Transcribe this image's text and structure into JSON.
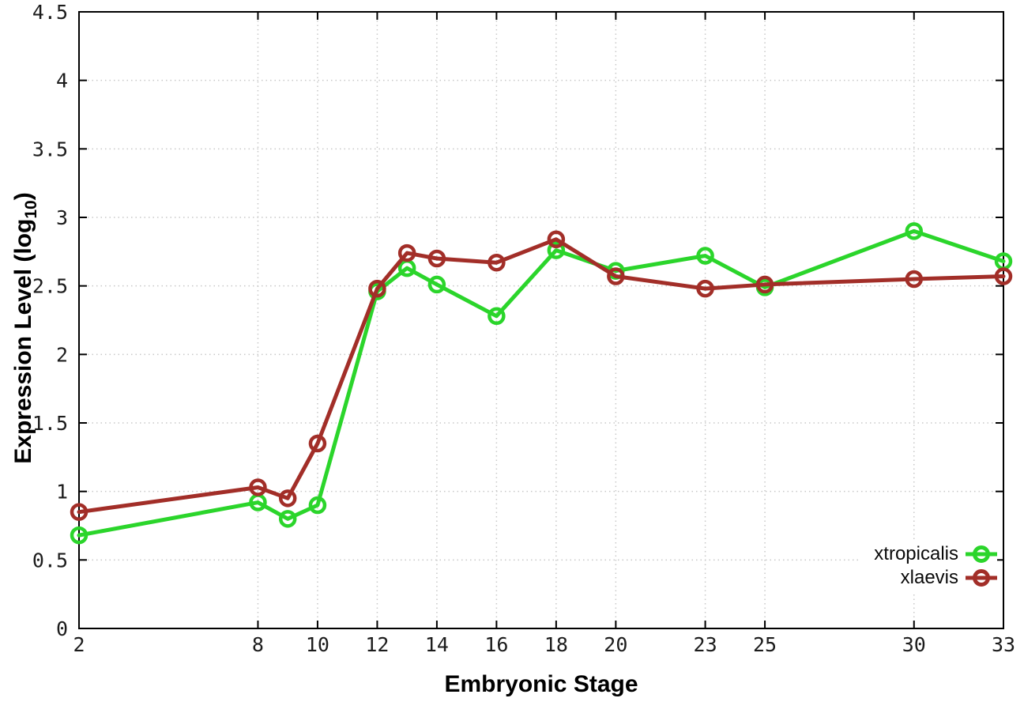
{
  "chart_data": {
    "type": "line",
    "title": "",
    "xlabel": "Embryonic Stage",
    "ylabel": {
      "prefix": "Expression Level (log",
      "sub": "10",
      "suffix": ")"
    },
    "xlim": [
      2,
      33
    ],
    "ylim": [
      0,
      4.5
    ],
    "grid": true,
    "legend_position": "inside-right-bottom",
    "x": [
      2,
      8,
      9,
      10,
      12,
      13,
      14,
      16,
      18,
      20,
      23,
      25,
      30,
      33
    ],
    "x_tick_values": [
      2,
      8,
      10,
      12,
      14,
      16,
      18,
      20,
      23,
      25,
      30,
      33
    ],
    "x_tick_labels": [
      "2",
      "8",
      "10",
      "12",
      "14",
      "16",
      "18",
      "20",
      "23",
      "25",
      "30",
      "33"
    ],
    "y_tick_values": [
      0,
      0.5,
      1,
      1.5,
      2,
      2.5,
      3,
      3.5,
      4,
      4.5
    ],
    "y_tick_labels": [
      "0",
      "0.5",
      "1",
      "1.5",
      "2",
      "2.5",
      "3",
      "3.5",
      "4",
      "4.5"
    ],
    "series": [
      {
        "name": "xtropicalis",
        "color": "#2bd52b",
        "marker": "open-circle",
        "values": [
          0.68,
          0.92,
          0.8,
          0.9,
          2.46,
          2.63,
          2.51,
          2.28,
          2.76,
          2.61,
          2.72,
          2.49,
          2.9,
          2.68
        ]
      },
      {
        "name": "xlaevis",
        "color": "#a22e28",
        "marker": "open-circle",
        "values": [
          0.85,
          1.03,
          0.95,
          1.35,
          2.48,
          2.74,
          2.7,
          2.67,
          2.84,
          2.57,
          2.48,
          2.51,
          2.55,
          2.57
        ]
      }
    ],
    "colors": {
      "grid": "#c8c8c8",
      "axis": "#000000",
      "tick_text": "#1c1c1c"
    }
  }
}
